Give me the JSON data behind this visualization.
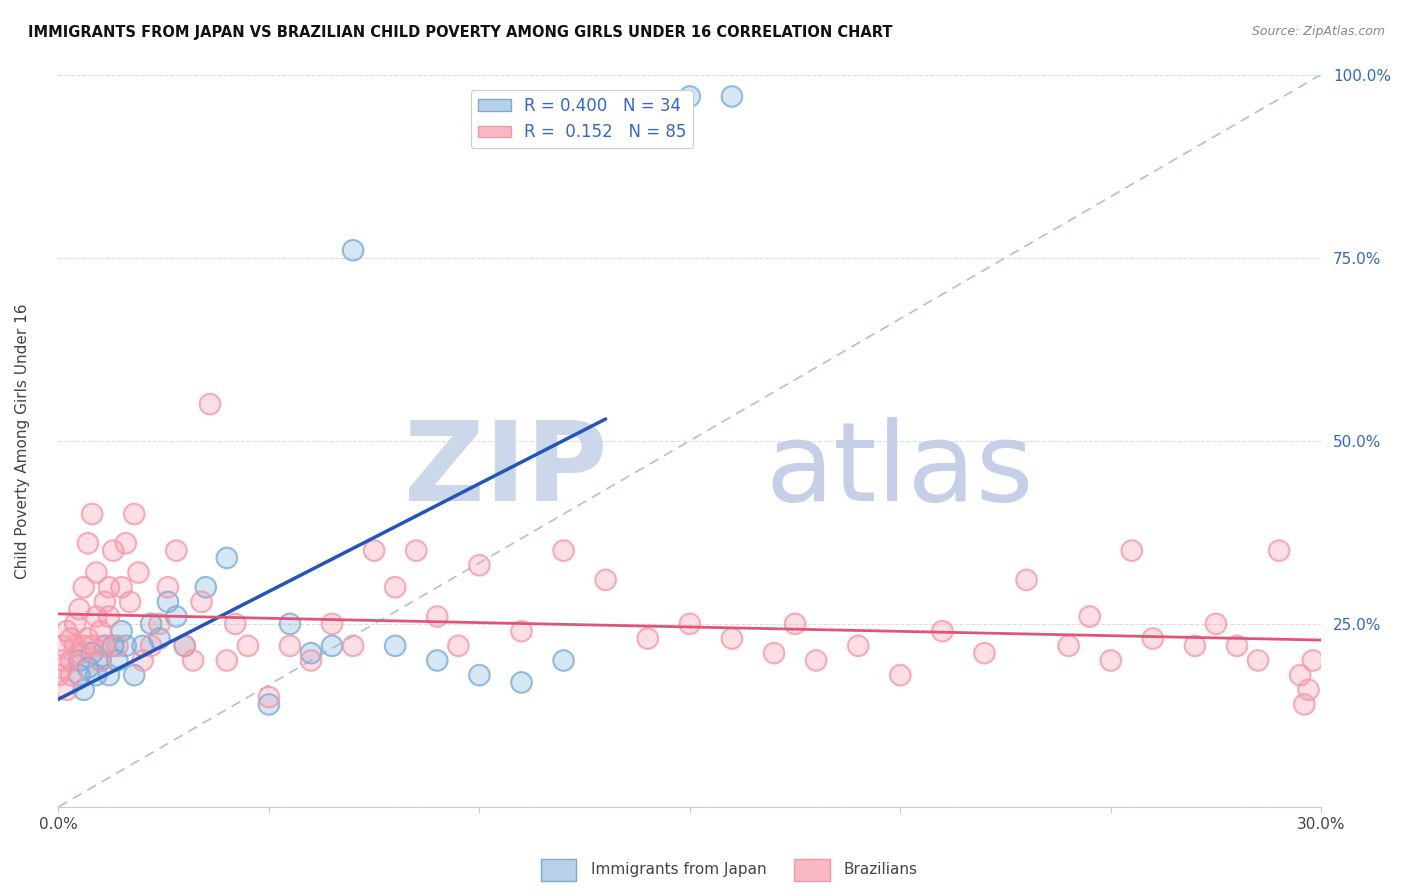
{
  "title": "IMMIGRANTS FROM JAPAN VS BRAZILIAN CHILD POVERTY AMONG GIRLS UNDER 16 CORRELATION CHART",
  "source": "Source: ZipAtlas.com",
  "ylabel": "Child Poverty Among Girls Under 16",
  "x_min": 0.0,
  "x_max": 0.3,
  "y_min": 0.0,
  "y_max": 1.0,
  "x_ticks": [
    0.0,
    0.05,
    0.1,
    0.15,
    0.2,
    0.25,
    0.3
  ],
  "x_tick_labels": [
    "0.0%",
    "",
    "",
    "",
    "",
    "",
    "30.0%"
  ],
  "y_ticks": [
    0.0,
    0.25,
    0.5,
    0.75,
    1.0
  ],
  "y_tick_labels_left": [
    "",
    "",
    "",
    "",
    ""
  ],
  "y_tick_labels_right": [
    "",
    "25.0%",
    "50.0%",
    "75.0%",
    "100.0%"
  ],
  "series1_label": "Immigrants from Japan",
  "series1_color": "#7aadd4",
  "series1_line_color": "#2255BB",
  "series1_R": "0.400",
  "series1_N": "34",
  "series2_label": "Brazilians",
  "series2_color": "#f797aa",
  "series2_line_color": "#e05575",
  "series2_R": "0.152",
  "series2_N": "85",
  "legend_text_color": "#3366CC",
  "watermark_zip_color": "#ccd8ea",
  "watermark_atlas_color": "#c5cfe8",
  "background_color": "#ffffff",
  "grid_color": "#dddddd",
  "series1_x": [
    0.005,
    0.005,
    0.006,
    0.007,
    0.008,
    0.009,
    0.01,
    0.011,
    0.012,
    0.013,
    0.014,
    0.015,
    0.016,
    0.018,
    0.02,
    0.022,
    0.024,
    0.026,
    0.028,
    0.03,
    0.035,
    0.04,
    0.05,
    0.055,
    0.06,
    0.065,
    0.07,
    0.08,
    0.09,
    0.1,
    0.11,
    0.12,
    0.15,
    0.16
  ],
  "series1_y": [
    0.2,
    0.18,
    0.16,
    0.19,
    0.21,
    0.18,
    0.2,
    0.22,
    0.18,
    0.22,
    0.2,
    0.24,
    0.22,
    0.18,
    0.22,
    0.25,
    0.23,
    0.28,
    0.26,
    0.22,
    0.3,
    0.34,
    0.14,
    0.25,
    0.21,
    0.22,
    0.76,
    0.22,
    0.2,
    0.18,
    0.17,
    0.2,
    0.97,
    0.97
  ],
  "series2_x": [
    0.0,
    0.001,
    0.001,
    0.001,
    0.002,
    0.002,
    0.003,
    0.003,
    0.003,
    0.004,
    0.004,
    0.005,
    0.005,
    0.006,
    0.006,
    0.007,
    0.007,
    0.008,
    0.008,
    0.009,
    0.009,
    0.01,
    0.01,
    0.011,
    0.011,
    0.012,
    0.012,
    0.013,
    0.014,
    0.015,
    0.016,
    0.017,
    0.018,
    0.019,
    0.02,
    0.022,
    0.024,
    0.026,
    0.028,
    0.03,
    0.032,
    0.034,
    0.036,
    0.04,
    0.042,
    0.045,
    0.05,
    0.055,
    0.06,
    0.065,
    0.07,
    0.075,
    0.08,
    0.085,
    0.09,
    0.095,
    0.1,
    0.11,
    0.12,
    0.13,
    0.14,
    0.15,
    0.16,
    0.17,
    0.175,
    0.18,
    0.19,
    0.2,
    0.21,
    0.22,
    0.23,
    0.24,
    0.245,
    0.25,
    0.255,
    0.26,
    0.27,
    0.275,
    0.28,
    0.285,
    0.29,
    0.295,
    0.296,
    0.297,
    0.298
  ],
  "series2_y": [
    0.18,
    0.2,
    0.22,
    0.19,
    0.24,
    0.16,
    0.2,
    0.23,
    0.18,
    0.22,
    0.25,
    0.21,
    0.27,
    0.22,
    0.3,
    0.23,
    0.36,
    0.22,
    0.4,
    0.26,
    0.32,
    0.24,
    0.2,
    0.28,
    0.22,
    0.3,
    0.26,
    0.35,
    0.22,
    0.3,
    0.36,
    0.28,
    0.4,
    0.32,
    0.2,
    0.22,
    0.25,
    0.3,
    0.35,
    0.22,
    0.2,
    0.28,
    0.55,
    0.2,
    0.25,
    0.22,
    0.15,
    0.22,
    0.2,
    0.25,
    0.22,
    0.35,
    0.3,
    0.35,
    0.26,
    0.22,
    0.33,
    0.24,
    0.35,
    0.31,
    0.23,
    0.25,
    0.23,
    0.21,
    0.25,
    0.2,
    0.22,
    0.18,
    0.24,
    0.21,
    0.31,
    0.22,
    0.26,
    0.2,
    0.35,
    0.23,
    0.22,
    0.25,
    0.22,
    0.2,
    0.35,
    0.18,
    0.14,
    0.16,
    0.2
  ]
}
